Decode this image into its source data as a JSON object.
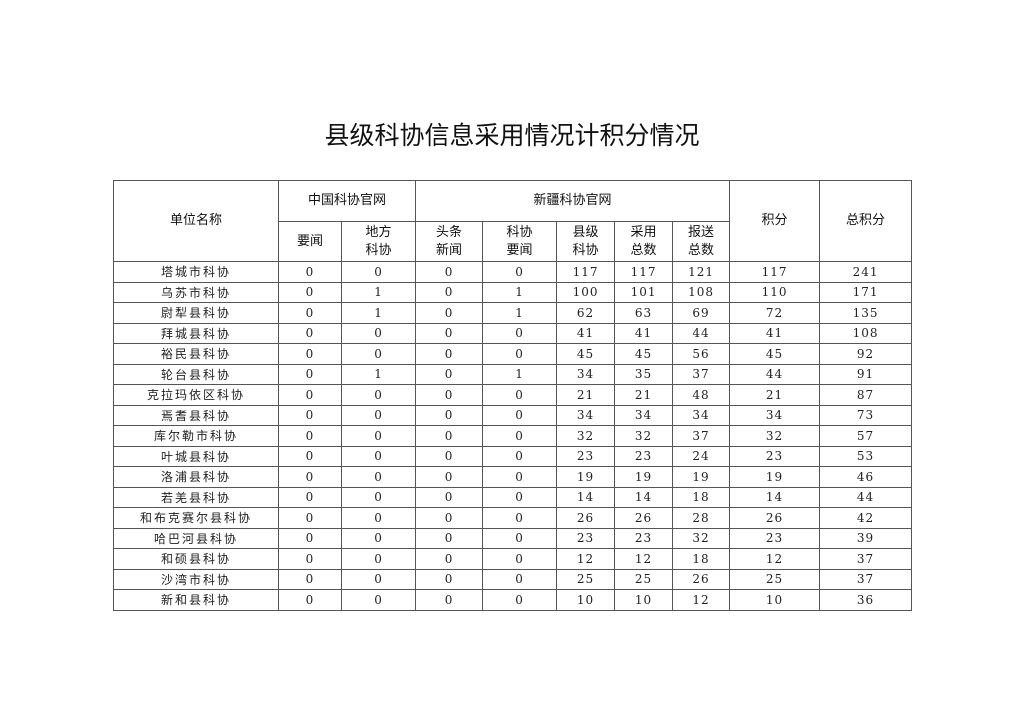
{
  "title": "县级科协信息采用情况计积分情况",
  "table": {
    "headers": {
      "unit": "单位名称",
      "cast_site": "中国科协官网",
      "xj_site": "新疆科协官网",
      "score": "积分",
      "total": "总积分",
      "sub": [
        "要闻",
        "地方\n科协",
        "头条\n新闻",
        "科协\n要闻",
        "县级\n科协",
        "采用\n总数",
        "报送\n总数"
      ]
    },
    "rows": [
      [
        "塔城市科协",
        "0",
        "0",
        "0",
        "0",
        "117",
        "117",
        "121",
        "117",
        "241"
      ],
      [
        "乌苏市科协",
        "0",
        "1",
        "0",
        "1",
        "100",
        "101",
        "108",
        "110",
        "171"
      ],
      [
        "尉犁县科协",
        "0",
        "1",
        "0",
        "1",
        "62",
        "63",
        "69",
        "72",
        "135"
      ],
      [
        "拜城县科协",
        "0",
        "0",
        "0",
        "0",
        "41",
        "41",
        "44",
        "41",
        "108"
      ],
      [
        "裕民县科协",
        "0",
        "0",
        "0",
        "0",
        "45",
        "45",
        "56",
        "45",
        "92"
      ],
      [
        "轮台县科协",
        "0",
        "1",
        "0",
        "1",
        "34",
        "35",
        "37",
        "44",
        "91"
      ],
      [
        "克拉玛依区科协",
        "0",
        "0",
        "0",
        "0",
        "21",
        "21",
        "48",
        "21",
        "87"
      ],
      [
        "焉耆县科协",
        "0",
        "0",
        "0",
        "0",
        "34",
        "34",
        "34",
        "34",
        "73"
      ],
      [
        "库尔勒市科协",
        "0",
        "0",
        "0",
        "0",
        "32",
        "32",
        "37",
        "32",
        "57"
      ],
      [
        "叶城县科协",
        "0",
        "0",
        "0",
        "0",
        "23",
        "23",
        "24",
        "23",
        "53"
      ],
      [
        "洛浦县科协",
        "0",
        "0",
        "0",
        "0",
        "19",
        "19",
        "19",
        "19",
        "46"
      ],
      [
        "若羌县科协",
        "0",
        "0",
        "0",
        "0",
        "14",
        "14",
        "18",
        "14",
        "44"
      ],
      [
        "和布克赛尔县科协",
        "0",
        "0",
        "0",
        "0",
        "26",
        "26",
        "28",
        "26",
        "42"
      ],
      [
        "哈巴河县科协",
        "0",
        "0",
        "0",
        "0",
        "23",
        "23",
        "32",
        "23",
        "39"
      ],
      [
        "和硕县科协",
        "0",
        "0",
        "0",
        "0",
        "12",
        "12",
        "18",
        "12",
        "37"
      ],
      [
        "沙湾市科协",
        "0",
        "0",
        "0",
        "0",
        "25",
        "25",
        "26",
        "25",
        "37"
      ],
      [
        "新和县科协",
        "0",
        "0",
        "0",
        "0",
        "10",
        "10",
        "12",
        "10",
        "36"
      ]
    ]
  }
}
